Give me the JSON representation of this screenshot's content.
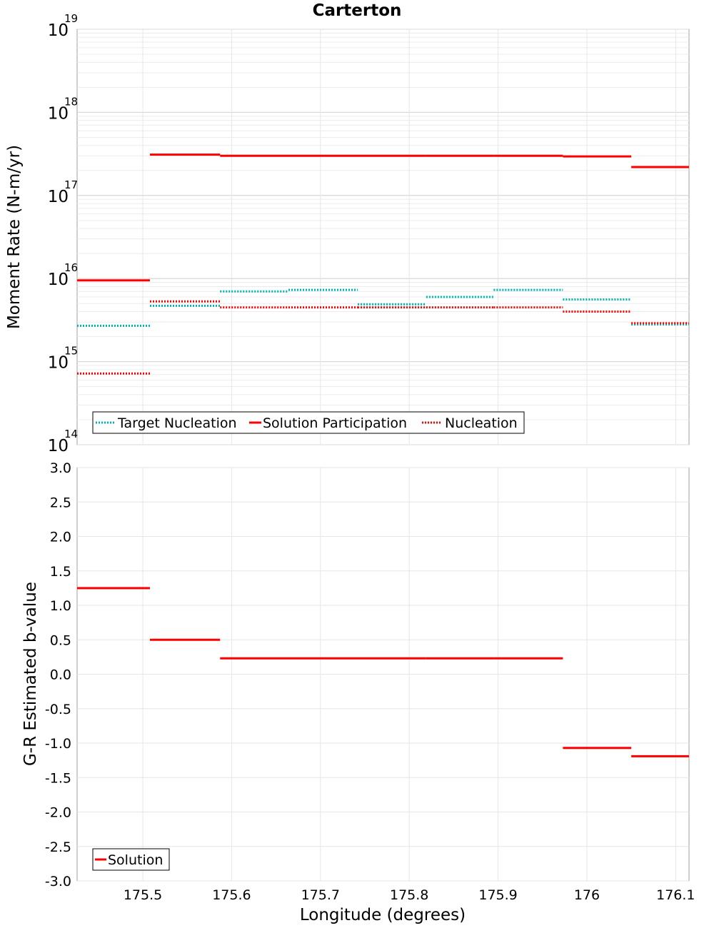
{
  "chart_data": {
    "title": "Carterton",
    "xlabel": "Longitude (degrees)",
    "x_ticks": [
      "175.5",
      "175.6",
      "175.7",
      "175.8",
      "175.9",
      "176",
      "176.1"
    ],
    "xlim": [
      175.426,
      176.115
    ],
    "bin_edges": [
      175.426,
      175.508,
      175.587,
      175.664,
      175.742,
      175.819,
      175.895,
      175.973,
      176.05,
      176.115
    ],
    "panels": [
      {
        "type": "line",
        "scale": "log",
        "ylabel": "Moment Rate (N-m/yr)",
        "ylim": [
          100000000000000.0,
          1e+19
        ],
        "y_ticks": [
          {
            "base": "10",
            "exp": "14",
            "value": 100000000000000.0
          },
          {
            "base": "10",
            "exp": "15",
            "value": 1000000000000000.0
          },
          {
            "base": "10",
            "exp": "16",
            "value": 1e+16
          },
          {
            "base": "10",
            "exp": "17",
            "value": 1e+17
          },
          {
            "base": "10",
            "exp": "18",
            "value": 1e+18
          },
          {
            "base": "10",
            "exp": "19",
            "value": 1e+19
          }
        ],
        "grid": true,
        "legend_position": "bottom-left",
        "series": [
          {
            "name": "Target Nucleation",
            "color": "#00b4b4",
            "style": "dotted",
            "values": [
              2700000000000000.0,
              4700000000000000.0,
              7000000000000000.0,
              7300000000000000.0,
              4900000000000000.0,
              6000000000000000.0,
              7300000000000000.0,
              5600000000000000.0,
              2800000000000000.0
            ]
          },
          {
            "name": "Solution Participation",
            "color": "#ff0000",
            "style": "solid",
            "values": [
              9500000000000000.0,
              3.1e+17,
              3e+17,
              3e+17,
              3e+17,
              3e+17,
              3e+17,
              2.95e+17,
              2.2e+17
            ]
          },
          {
            "name": "Nucleation",
            "color": "#ff0000",
            "style": "dotted",
            "values": [
              720000000000000.0,
              5300000000000000.0,
              4500000000000000.0,
              4500000000000000.0,
              4500000000000000.0,
              4500000000000000.0,
              4500000000000000.0,
              4000000000000000.0,
              2900000000000000.0
            ]
          }
        ]
      },
      {
        "type": "line",
        "scale": "linear",
        "ylabel": "G-R Estimated b-value",
        "ylim": [
          -3.0,
          3.0
        ],
        "y_ticks": [
          "3.0",
          "2.5",
          "2.0",
          "1.5",
          "1.0",
          "0.5",
          "0.0",
          "-0.5",
          "-1.0",
          "-1.5",
          "-2.0",
          "-2.5",
          "-3.0"
        ],
        "grid": true,
        "legend_position": "bottom-left",
        "series": [
          {
            "name": "Solution",
            "color": "#ff0000",
            "style": "solid",
            "values": [
              1.25,
              0.5,
              0.23,
              0.23,
              0.23,
              0.23,
              0.23,
              -1.07,
              -1.19
            ]
          }
        ]
      }
    ]
  }
}
